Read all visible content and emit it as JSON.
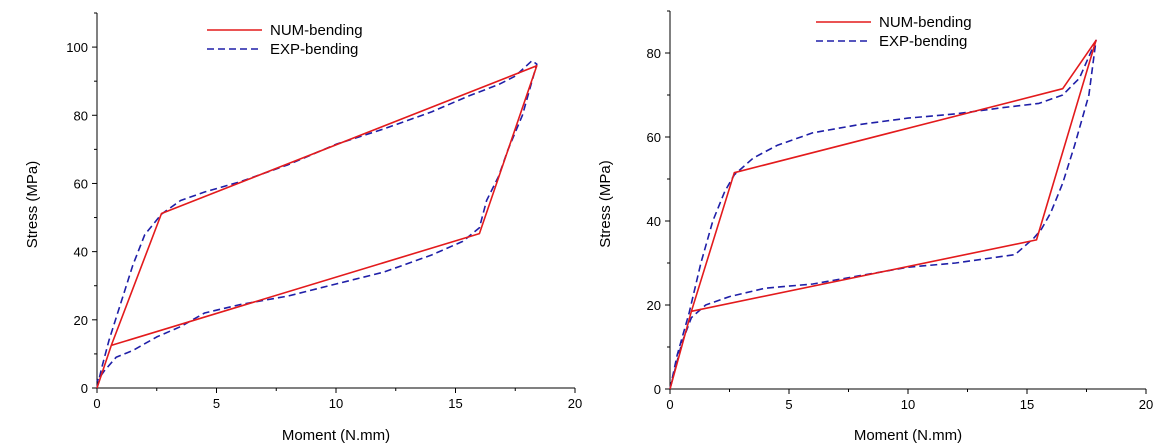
{
  "chart_data": [
    {
      "type": "line",
      "xlabel": "Moment (N.mm)",
      "ylabel": "Stress (MPa)",
      "xlim": [
        0,
        20
      ],
      "ylim": [
        0,
        110
      ],
      "xticks": [
        "0",
        "5",
        "10",
        "15",
        "20"
      ],
      "yticks": [
        "0",
        "20",
        "40",
        "60",
        "80",
        "100"
      ],
      "xtick_values": [
        0,
        5,
        10,
        15,
        20
      ],
      "ytick_values": [
        0,
        20,
        40,
        60,
        80,
        100
      ],
      "grid": false,
      "legend": "top-center",
      "series": [
        {
          "name": "NUM-bending",
          "color": "#e31a1c",
          "style": "solid",
          "x": [
            0,
            0.6,
            2.7,
            18.4,
            16.0,
            0.6
          ],
          "y": [
            0,
            12.5,
            51.2,
            94.5,
            45.3,
            12.5
          ]
        },
        {
          "name": "EXP-bending",
          "color": "#1f1fa8",
          "style": "dashed",
          "x": [
            0,
            0.2,
            0.5,
            1.0,
            1.5,
            2.0,
            2.7,
            3.5,
            4.5,
            6.0,
            8.0,
            10.0,
            12.0,
            14.0,
            15.5,
            16.8,
            17.5,
            18.2,
            18.4,
            17.8,
            17.2,
            16.8,
            16.3,
            16.0,
            15.3,
            14.0,
            12.0,
            10.0,
            8.0,
            6.0,
            4.5,
            3.5,
            2.5,
            1.5,
            0.8,
            0.3,
            0
          ],
          "y": [
            0,
            6,
            14,
            25,
            36,
            45,
            51,
            55,
            57.5,
            60.5,
            65.5,
            71.5,
            76,
            81,
            85.5,
            89,
            91.5,
            96,
            95,
            80,
            70,
            62,
            55,
            47,
            43,
            39,
            34,
            30.5,
            27,
            24.5,
            22,
            18,
            15,
            11,
            9,
            5,
            2
          ]
        }
      ]
    },
    {
      "type": "line",
      "xlabel": "Moment (N.mm)",
      "ylabel": "Stress (MPa)",
      "xlim": [
        0,
        20
      ],
      "ylim": [
        0,
        90
      ],
      "xticks": [
        "0",
        "5",
        "10",
        "15",
        "20"
      ],
      "yticks": [
        "0",
        "20",
        "40",
        "60",
        "80"
      ],
      "xtick_values": [
        0,
        5,
        10,
        15,
        20
      ],
      "ytick_values": [
        0,
        20,
        40,
        60,
        80
      ],
      "grid": false,
      "legend": "top-center",
      "series": [
        {
          "name": "NUM-bending",
          "color": "#e31a1c",
          "style": "solid",
          "x": [
            0,
            0.9,
            2.7,
            16.5,
            17.9,
            15.4,
            0.9
          ],
          "y": [
            0,
            18.5,
            51.5,
            71.5,
            83,
            35.5,
            18.5
          ]
        },
        {
          "name": "EXP-bending",
          "color": "#1f1fa8",
          "style": "dashed",
          "x": [
            0,
            0.3,
            0.8,
            1.3,
            1.8,
            2.3,
            2.7,
            3.5,
            4.5,
            6.0,
            8.0,
            10.0,
            12.0,
            14.0,
            15.5,
            16.5,
            17.2,
            17.9,
            17.6,
            17.0,
            16.5,
            16.0,
            15.6,
            15.3,
            14.5,
            12.0,
            10.0,
            8.0,
            6.0,
            4.0,
            2.5,
            1.5,
            0.9,
            0.5,
            0
          ],
          "y": [
            0,
            8,
            18,
            30,
            40,
            47,
            51,
            55,
            58,
            61,
            63,
            64.5,
            65.5,
            67,
            68,
            70,
            74,
            83,
            70,
            58,
            49,
            42,
            38,
            36,
            32,
            30,
            29,
            27,
            25,
            24,
            22,
            20,
            17,
            11,
            0
          ]
        }
      ]
    }
  ]
}
